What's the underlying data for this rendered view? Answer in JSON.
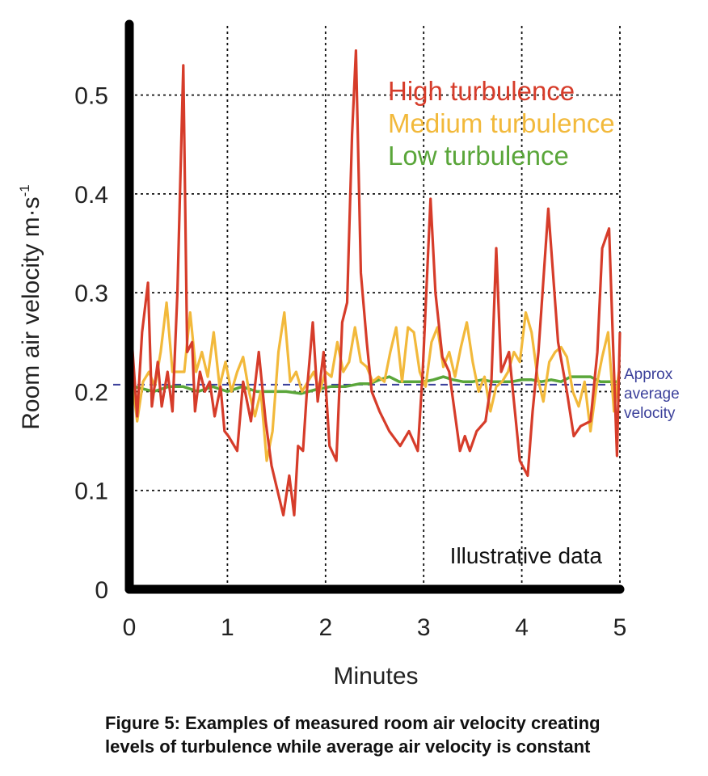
{
  "chart_data": {
    "type": "line",
    "xlabel": "Minutes",
    "ylabel": "Room air velocity m·s",
    "ylabel_superscript": "-1",
    "xlim": [
      0,
      5
    ],
    "ylim": [
      0,
      0.57
    ],
    "x_ticks": [
      "0",
      "1",
      "2",
      "3",
      "4",
      "5"
    ],
    "y_ticks": [
      "0",
      "0.1",
      "0.2",
      "0.3",
      "0.4",
      "0.5"
    ],
    "grid": true,
    "legend_position": "top-right",
    "annotation": "Illustrative data",
    "reference_line": {
      "value": 0.207,
      "color": "#3a3f9a",
      "label_lines": [
        "Approx",
        "average",
        "velocity"
      ]
    },
    "series": [
      {
        "name": "High turbulence",
        "color": "#d63c2a",
        "points": [
          [
            0.02,
            0.26
          ],
          [
            0.08,
            0.175
          ],
          [
            0.13,
            0.26
          ],
          [
            0.19,
            0.31
          ],
          [
            0.23,
            0.185
          ],
          [
            0.29,
            0.23
          ],
          [
            0.33,
            0.185
          ],
          [
            0.39,
            0.22
          ],
          [
            0.44,
            0.18
          ],
          [
            0.49,
            0.3
          ],
          [
            0.55,
            0.53
          ],
          [
            0.59,
            0.24
          ],
          [
            0.64,
            0.25
          ],
          [
            0.67,
            0.18
          ],
          [
            0.72,
            0.22
          ],
          [
            0.77,
            0.2
          ],
          [
            0.82,
            0.21
          ],
          [
            0.87,
            0.175
          ],
          [
            0.93,
            0.205
          ],
          [
            0.97,
            0.16
          ],
          [
            1.01,
            0.155
          ],
          [
            1.1,
            0.14
          ],
          [
            1.16,
            0.21
          ],
          [
            1.24,
            0.17
          ],
          [
            1.32,
            0.24
          ],
          [
            1.39,
            0.17
          ],
          [
            1.45,
            0.125
          ],
          [
            1.51,
            0.1
          ],
          [
            1.57,
            0.075
          ],
          [
            1.63,
            0.115
          ],
          [
            1.68,
            0.075
          ],
          [
            1.72,
            0.145
          ],
          [
            1.77,
            0.14
          ],
          [
            1.81,
            0.2
          ],
          [
            1.87,
            0.27
          ],
          [
            1.92,
            0.19
          ],
          [
            1.98,
            0.24
          ],
          [
            2.04,
            0.145
          ],
          [
            2.11,
            0.13
          ],
          [
            2.17,
            0.27
          ],
          [
            2.22,
            0.29
          ],
          [
            2.27,
            0.46
          ],
          [
            2.31,
            0.545
          ],
          [
            2.36,
            0.32
          ],
          [
            2.42,
            0.25
          ],
          [
            2.47,
            0.2
          ],
          [
            2.55,
            0.18
          ],
          [
            2.65,
            0.16
          ],
          [
            2.76,
            0.145
          ],
          [
            2.85,
            0.16
          ],
          [
            2.94,
            0.14
          ],
          [
            2.99,
            0.22
          ],
          [
            3.07,
            0.395
          ],
          [
            3.12,
            0.3
          ],
          [
            3.19,
            0.235
          ],
          [
            3.26,
            0.22
          ],
          [
            3.37,
            0.14
          ],
          [
            3.42,
            0.155
          ],
          [
            3.47,
            0.14
          ],
          [
            3.54,
            0.16
          ],
          [
            3.63,
            0.17
          ],
          [
            3.69,
            0.21
          ],
          [
            3.74,
            0.345
          ],
          [
            3.79,
            0.22
          ],
          [
            3.87,
            0.24
          ],
          [
            3.98,
            0.13
          ],
          [
            4.06,
            0.115
          ],
          [
            4.11,
            0.18
          ],
          [
            4.17,
            0.24
          ],
          [
            4.27,
            0.385
          ],
          [
            4.37,
            0.25
          ],
          [
            4.46,
            0.2
          ],
          [
            4.53,
            0.155
          ],
          [
            4.6,
            0.165
          ],
          [
            4.7,
            0.17
          ],
          [
            4.77,
            0.24
          ],
          [
            4.82,
            0.345
          ],
          [
            4.89,
            0.365
          ],
          [
            4.94,
            0.22
          ],
          [
            4.97,
            0.135
          ],
          [
            5.0,
            0.26
          ]
        ]
      },
      {
        "name": "Medium turbulence",
        "color": "#f2b93b",
        "points": [
          [
            0.02,
            0.22
          ],
          [
            0.08,
            0.17
          ],
          [
            0.14,
            0.21
          ],
          [
            0.2,
            0.22
          ],
          [
            0.26,
            0.205
          ],
          [
            0.32,
            0.24
          ],
          [
            0.38,
            0.29
          ],
          [
            0.44,
            0.22
          ],
          [
            0.5,
            0.22
          ],
          [
            0.56,
            0.22
          ],
          [
            0.62,
            0.28
          ],
          [
            0.68,
            0.22
          ],
          [
            0.74,
            0.24
          ],
          [
            0.8,
            0.215
          ],
          [
            0.86,
            0.26
          ],
          [
            0.92,
            0.205
          ],
          [
            0.98,
            0.23
          ],
          [
            1.04,
            0.2
          ],
          [
            1.1,
            0.22
          ],
          [
            1.16,
            0.235
          ],
          [
            1.22,
            0.2
          ],
          [
            1.28,
            0.175
          ],
          [
            1.34,
            0.2
          ],
          [
            1.4,
            0.13
          ],
          [
            1.46,
            0.16
          ],
          [
            1.52,
            0.24
          ],
          [
            1.58,
            0.28
          ],
          [
            1.64,
            0.21
          ],
          [
            1.7,
            0.22
          ],
          [
            1.76,
            0.2
          ],
          [
            1.82,
            0.21
          ],
          [
            1.88,
            0.22
          ],
          [
            1.94,
            0.2
          ],
          [
            2.0,
            0.22
          ],
          [
            2.06,
            0.215
          ],
          [
            2.12,
            0.25
          ],
          [
            2.18,
            0.22
          ],
          [
            2.24,
            0.23
          ],
          [
            2.3,
            0.265
          ],
          [
            2.36,
            0.23
          ],
          [
            2.42,
            0.225
          ],
          [
            2.48,
            0.21
          ],
          [
            2.54,
            0.215
          ],
          [
            2.6,
            0.21
          ],
          [
            2.66,
            0.24
          ],
          [
            2.72,
            0.265
          ],
          [
            2.78,
            0.21
          ],
          [
            2.84,
            0.265
          ],
          [
            2.9,
            0.26
          ],
          [
            2.96,
            0.22
          ],
          [
            3.02,
            0.205
          ],
          [
            3.08,
            0.25
          ],
          [
            3.14,
            0.265
          ],
          [
            3.2,
            0.225
          ],
          [
            3.26,
            0.24
          ],
          [
            3.32,
            0.215
          ],
          [
            3.38,
            0.245
          ],
          [
            3.44,
            0.27
          ],
          [
            3.5,
            0.23
          ],
          [
            3.56,
            0.2
          ],
          [
            3.62,
            0.215
          ],
          [
            3.68,
            0.18
          ],
          [
            3.74,
            0.205
          ],
          [
            3.8,
            0.21
          ],
          [
            3.86,
            0.22
          ],
          [
            3.92,
            0.24
          ],
          [
            3.98,
            0.23
          ],
          [
            4.04,
            0.28
          ],
          [
            4.1,
            0.26
          ],
          [
            4.16,
            0.215
          ],
          [
            4.22,
            0.19
          ],
          [
            4.28,
            0.23
          ],
          [
            4.34,
            0.24
          ],
          [
            4.4,
            0.245
          ],
          [
            4.46,
            0.235
          ],
          [
            4.52,
            0.2
          ],
          [
            4.58,
            0.185
          ],
          [
            4.64,
            0.21
          ],
          [
            4.7,
            0.16
          ],
          [
            4.76,
            0.205
          ],
          [
            4.82,
            0.235
          ],
          [
            4.88,
            0.26
          ],
          [
            4.94,
            0.18
          ],
          [
            4.99,
            0.22
          ]
        ]
      },
      {
        "name": "Low turbulence",
        "color": "#5aa63a",
        "points": [
          [
            0.05,
            0.205
          ],
          [
            0.25,
            0.2
          ],
          [
            0.4,
            0.205
          ],
          [
            0.55,
            0.205
          ],
          [
            0.7,
            0.2
          ],
          [
            0.85,
            0.205
          ],
          [
            1.0,
            0.2
          ],
          [
            1.15,
            0.205
          ],
          [
            1.3,
            0.2
          ],
          [
            1.45,
            0.2
          ],
          [
            1.6,
            0.2
          ],
          [
            1.75,
            0.198
          ],
          [
            1.9,
            0.202
          ],
          [
            2.05,
            0.205
          ],
          [
            2.2,
            0.205
          ],
          [
            2.35,
            0.208
          ],
          [
            2.45,
            0.208
          ],
          [
            2.55,
            0.212
          ],
          [
            2.65,
            0.215
          ],
          [
            2.75,
            0.21
          ],
          [
            2.9,
            0.21
          ],
          [
            3.0,
            0.21
          ],
          [
            3.1,
            0.212
          ],
          [
            3.2,
            0.215
          ],
          [
            3.3,
            0.212
          ],
          [
            3.4,
            0.21
          ],
          [
            3.5,
            0.21
          ],
          [
            3.6,
            0.212
          ],
          [
            3.7,
            0.21
          ],
          [
            3.8,
            0.21
          ],
          [
            3.9,
            0.21
          ],
          [
            4.0,
            0.212
          ],
          [
            4.1,
            0.212
          ],
          [
            4.2,
            0.21
          ],
          [
            4.3,
            0.212
          ],
          [
            4.4,
            0.21
          ],
          [
            4.5,
            0.215
          ],
          [
            4.6,
            0.215
          ],
          [
            4.7,
            0.215
          ],
          [
            4.8,
            0.21
          ],
          [
            4.9,
            0.21
          ],
          [
            5.0,
            0.21
          ]
        ]
      }
    ]
  },
  "caption": {
    "line1": "Figure 5: Examples of measured room air velocity creating",
    "line2": "levels of turbulence while average air velocity is constant"
  }
}
